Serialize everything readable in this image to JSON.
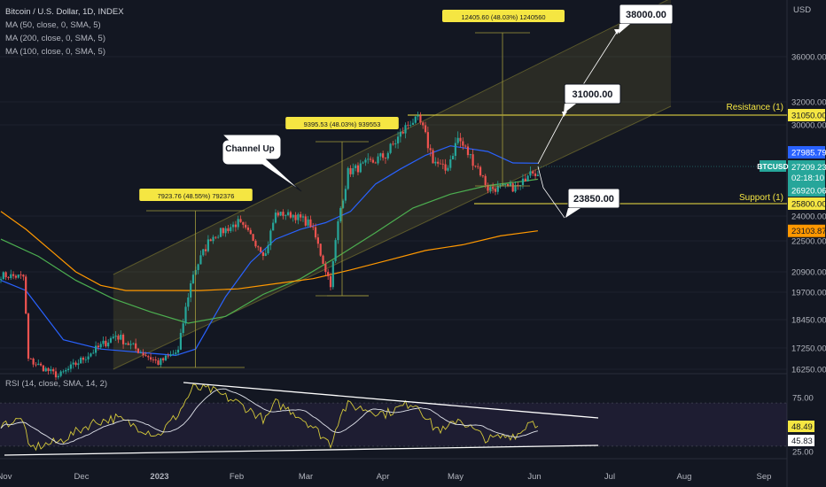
{
  "chart_data": [
    {
      "type": "candlestick",
      "title": "Bitcoin / U.S. Dollar, 1D, INDEX",
      "currency": "USD",
      "symbol": "BTCUSD",
      "x_labels": [
        "Nov",
        "Dec",
        "2023",
        "Feb",
        "Mar",
        "Apr",
        "May",
        "Jun",
        "Jul",
        "Aug",
        "Sep"
      ],
      "y_ticks": [
        36000.0,
        32000.0,
        30000.0,
        24000.0,
        22500.0,
        20900.0,
        19700.0,
        18450.0,
        17250.0,
        16250.0
      ],
      "y_range": [
        15750,
        41000
      ],
      "indicators": [
        {
          "label": "MA (50, close, 0, SMA, 5)",
          "color": "#2962ff",
          "last": "27985.79"
        },
        {
          "label": "MA (200, close, 0, SMA, 5)",
          "color": "#26a69a",
          "last": "26920.06"
        },
        {
          "label": "MA (100, close, 0, SMA, 5)",
          "color": "#ff9800",
          "last": "23103.87"
        }
      ],
      "last_price": "27209.23",
      "countdown": "02:18:10",
      "levels": [
        {
          "name": "Resistance (1)",
          "value": "31050.00",
          "color": "#f5e642"
        },
        {
          "name": "Support (1)",
          "value": "25800.00",
          "color": "#f5e642"
        }
      ],
      "targets": [
        "38000.00",
        "31000.00",
        "23850.00"
      ],
      "annotations": [
        {
          "text": "Channel Up"
        },
        {
          "text": "7923.76 (48.55%) 792376"
        },
        {
          "text": "9395.53 (48.03%) 939553"
        },
        {
          "text": "12405.60 (48.03%) 1240560"
        }
      ],
      "candles": {
        "start_date": "2022-10-29",
        "end_date": "2023-06-01",
        "key_closes": [
          [
            "2022-10-29",
            20700
          ],
          [
            "2022-11-07",
            20600
          ],
          [
            "2022-11-09",
            16700
          ],
          [
            "2022-11-21",
            15900
          ],
          [
            "2022-12-05",
            17100
          ],
          [
            "2022-12-14",
            17800
          ],
          [
            "2022-12-31",
            16550
          ],
          [
            "2023-01-08",
            17100
          ],
          [
            "2023-01-14",
            20800
          ],
          [
            "2023-01-21",
            22700
          ],
          [
            "2023-02-01",
            23600
          ],
          [
            "2023-02-12",
            21800
          ],
          [
            "2023-02-16",
            24200
          ],
          [
            "2023-02-23",
            24100
          ],
          [
            "2023-03-02",
            23500
          ],
          [
            "2023-03-10",
            20200
          ],
          [
            "2023-03-14",
            24700
          ],
          [
            "2023-03-17",
            27400
          ],
          [
            "2023-04-01",
            28400
          ],
          [
            "2023-04-11",
            30200
          ],
          [
            "2023-04-14",
            30500
          ],
          [
            "2023-04-20",
            28200
          ],
          [
            "2023-04-25",
            27500
          ],
          [
            "2023-04-30",
            29300
          ],
          [
            "2023-05-08",
            27700
          ],
          [
            "2023-05-12",
            26300
          ],
          [
            "2023-05-25",
            26400
          ],
          [
            "2023-05-29",
            27700
          ],
          [
            "2023-06-01",
            27209
          ]
        ]
      }
    },
    {
      "type": "line",
      "title": "RSI (14, close, SMA, 14, 2)",
      "y_ticks": [
        75.0,
        25.0
      ],
      "y_range": [
        20,
        85
      ],
      "band": [
        30,
        70
      ],
      "last_rsi": "48.49",
      "last_sma": "45.83",
      "key_values": [
        [
          "2022-10-29",
          50
        ],
        [
          "2022-11-07",
          55
        ],
        [
          "2022-11-09",
          28
        ],
        [
          "2022-11-21",
          34
        ],
        [
          "2022-12-05",
          52
        ],
        [
          "2022-12-14",
          56
        ],
        [
          "2022-12-31",
          40
        ],
        [
          "2023-01-08",
          60
        ],
        [
          "2023-01-14",
          84
        ],
        [
          "2023-01-21",
          82
        ],
        [
          "2023-02-01",
          70
        ],
        [
          "2023-02-12",
          54
        ],
        [
          "2023-02-16",
          70
        ],
        [
          "2023-02-23",
          62
        ],
        [
          "2023-03-02",
          50
        ],
        [
          "2023-03-10",
          32
        ],
        [
          "2023-03-14",
          60
        ],
        [
          "2023-03-17",
          68
        ],
        [
          "2023-04-01",
          60
        ],
        [
          "2023-04-11",
          70
        ],
        [
          "2023-04-14",
          68
        ],
        [
          "2023-04-20",
          48
        ],
        [
          "2023-04-25",
          44
        ],
        [
          "2023-04-30",
          56
        ],
        [
          "2023-05-08",
          42
        ],
        [
          "2023-05-12",
          36
        ],
        [
          "2023-05-25",
          42
        ],
        [
          "2023-05-29",
          55
        ],
        [
          "2023-06-01",
          48.49
        ]
      ]
    }
  ]
}
